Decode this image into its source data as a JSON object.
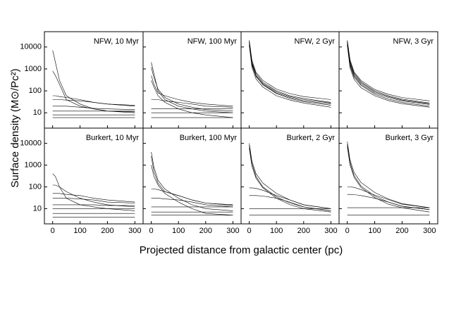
{
  "ylabel": "Surface density  (M⊙/Pc²)",
  "xlabel": "Projected distance from galactic center (pc)",
  "chart_data": [
    {
      "type": "line",
      "title": "NFW, 10 Myr",
      "color": "#000000",
      "log_y": true,
      "x": [
        0,
        10,
        25,
        50,
        100,
        150,
        200,
        300
      ],
      "xlim": [
        -30,
        330
      ],
      "xticks": [
        0,
        100,
        200,
        300
      ],
      "ylim": [
        2,
        50000
      ],
      "yticks": [
        10,
        100,
        1000,
        10000
      ],
      "series": [
        {
          "values": [
            7000,
            2000,
            300,
            60,
            25,
            15,
            12,
            10
          ]
        },
        {
          "values": [
            800,
            500,
            200,
            40,
            20,
            15,
            12,
            11
          ]
        },
        {
          "values": [
            60,
            60,
            55,
            50,
            40,
            30,
            25,
            20
          ]
        },
        {
          "values": [
            40,
            40,
            40,
            38,
            35,
            30,
            25,
            22
          ]
        },
        {
          "values": [
            20,
            20,
            20,
            20,
            18,
            16,
            15,
            14
          ]
        },
        {
          "values": [
            12,
            12,
            12,
            12,
            12,
            12,
            12,
            12
          ]
        },
        {
          "values": [
            8,
            8,
            8,
            8,
            8,
            8,
            8,
            8
          ]
        },
        {
          "values": [
            6,
            6,
            6,
            6,
            6,
            6,
            6,
            6
          ]
        }
      ]
    },
    {
      "type": "line",
      "title": "NFW, 100 Myr",
      "color": "#000000",
      "log_y": true,
      "x": [
        0,
        10,
        25,
        50,
        100,
        150,
        200,
        300
      ],
      "xlim": [
        -30,
        330
      ],
      "xticks": [
        0,
        100,
        200,
        300
      ],
      "ylim": [
        2,
        50000
      ],
      "yticks": [
        10,
        100,
        1000,
        10000
      ],
      "series": [
        {
          "values": [
            2000,
            600,
            100,
            40,
            20,
            15,
            12,
            10
          ]
        },
        {
          "values": [
            1200,
            400,
            120,
            50,
            25,
            18,
            14,
            12
          ]
        },
        {
          "values": [
            500,
            200,
            80,
            60,
            40,
            30,
            25,
            20
          ]
        },
        {
          "values": [
            300,
            150,
            60,
            30,
            15,
            10,
            8,
            6
          ]
        },
        {
          "values": [
            40,
            40,
            40,
            35,
            30,
            25,
            20,
            18
          ]
        },
        {
          "values": [
            15,
            15,
            15,
            15,
            15,
            15,
            15,
            15
          ]
        },
        {
          "values": [
            10,
            10,
            10,
            10,
            10,
            10,
            10,
            10
          ]
        },
        {
          "values": [
            6,
            6,
            6,
            6,
            6,
            6,
            6,
            6
          ]
        }
      ]
    },
    {
      "type": "line",
      "title": "NFW, 2 Gyr",
      "color": "#000000",
      "log_y": true,
      "x": [
        0,
        10,
        25,
        50,
        100,
        150,
        200,
        300
      ],
      "xlim": [
        -30,
        330
      ],
      "xticks": [
        0,
        100,
        200,
        300
      ],
      "ylim": [
        2,
        50000
      ],
      "yticks": [
        10,
        100,
        1000,
        10000
      ],
      "series": [
        {
          "values": [
            20000,
            2000,
            600,
            250,
            100,
            60,
            45,
            30
          ]
        },
        {
          "values": [
            15000,
            1500,
            450,
            200,
            80,
            50,
            35,
            25
          ]
        },
        {
          "values": [
            18000,
            1800,
            500,
            220,
            90,
            55,
            40,
            28
          ]
        },
        {
          "values": [
            12000,
            1200,
            350,
            150,
            60,
            38,
            28,
            18
          ]
        },
        {
          "values": [
            20000,
            2500,
            700,
            300,
            120,
            75,
            55,
            40
          ]
        },
        {
          "values": [
            16000,
            1600,
            480,
            190,
            75,
            45,
            32,
            22
          ]
        }
      ]
    },
    {
      "type": "line",
      "title": "NFW, 3 Gyr",
      "color": "#000000",
      "log_y": true,
      "x": [
        0,
        10,
        25,
        50,
        100,
        150,
        200,
        300
      ],
      "xlim": [
        -30,
        330
      ],
      "xticks": [
        0,
        100,
        200,
        300
      ],
      "ylim": [
        2,
        50000
      ],
      "yticks": [
        10,
        100,
        1000,
        10000
      ],
      "series": [
        {
          "values": [
            20000,
            2200,
            650,
            260,
            100,
            60,
            42,
            28
          ]
        },
        {
          "values": [
            16000,
            1600,
            480,
            200,
            80,
            50,
            35,
            24
          ]
        },
        {
          "values": [
            18000,
            1900,
            550,
            230,
            90,
            55,
            38,
            26
          ]
        },
        {
          "values": [
            12000,
            1100,
            330,
            140,
            60,
            36,
            26,
            18
          ]
        },
        {
          "values": [
            20000,
            2600,
            720,
            300,
            115,
            70,
            50,
            35
          ]
        },
        {
          "values": [
            14000,
            1400,
            420,
            180,
            70,
            42,
            30,
            20
          ]
        }
      ]
    },
    {
      "type": "line",
      "title": "Burkert, 10 Myr",
      "color": "#000000",
      "log_y": true,
      "x": [
        0,
        10,
        25,
        50,
        100,
        150,
        200,
        300
      ],
      "xlim": [
        -30,
        330
      ],
      "xticks": [
        0,
        100,
        200,
        300
      ],
      "ylim": [
        2,
        50000
      ],
      "yticks": [
        10,
        100,
        1000,
        10000
      ],
      "series": [
        {
          "values": [
            400,
            300,
            100,
            30,
            15,
            12,
            10,
            8
          ]
        },
        {
          "values": [
            120,
            120,
            100,
            60,
            30,
            20,
            15,
            12
          ]
        },
        {
          "values": [
            50,
            50,
            50,
            45,
            40,
            30,
            25,
            20
          ]
        },
        {
          "values": [
            30,
            30,
            30,
            30,
            28,
            25,
            20,
            18
          ]
        },
        {
          "values": [
            15,
            15,
            15,
            15,
            15,
            15,
            14,
            14
          ]
        },
        {
          "values": [
            10,
            10,
            10,
            10,
            10,
            10,
            10,
            10
          ]
        },
        {
          "values": [
            6,
            6,
            6,
            6,
            6,
            6,
            6,
            6
          ]
        },
        {
          "values": [
            4,
            4,
            4,
            4,
            4,
            4,
            4,
            4
          ]
        }
      ]
    },
    {
      "type": "line",
      "title": "Burkert, 100 Myr",
      "color": "#000000",
      "log_y": true,
      "x": [
        0,
        10,
        25,
        50,
        100,
        150,
        200,
        300
      ],
      "xlim": [
        -30,
        330
      ],
      "xticks": [
        0,
        100,
        200,
        300
      ],
      "ylim": [
        2,
        50000
      ],
      "yticks": [
        10,
        100,
        1000,
        10000
      ],
      "series": [
        {
          "values": [
            4000,
            800,
            200,
            80,
            30,
            15,
            10,
            8
          ]
        },
        {
          "values": [
            2500,
            500,
            150,
            60,
            40,
            25,
            18,
            14
          ]
        },
        {
          "values": [
            1000,
            300,
            120,
            50,
            20,
            10,
            6,
            5
          ]
        },
        {
          "values": [
            80,
            80,
            75,
            60,
            40,
            25,
            18,
            15
          ]
        },
        {
          "values": [
            30,
            30,
            30,
            28,
            25,
            20,
            15,
            12
          ]
        },
        {
          "values": [
            12,
            12,
            12,
            12,
            12,
            12,
            12,
            12
          ]
        },
        {
          "values": [
            7,
            7,
            7,
            7,
            7,
            7,
            7,
            7
          ]
        },
        {
          "values": [
            5,
            5,
            5,
            5,
            5,
            5,
            5,
            5
          ]
        }
      ]
    },
    {
      "type": "line",
      "title": "Burkert, 2 Gyr",
      "color": "#000000",
      "log_y": true,
      "x": [
        0,
        10,
        25,
        50,
        100,
        150,
        200,
        300
      ],
      "xlim": [
        -30,
        330
      ],
      "xticks": [
        0,
        100,
        200,
        300
      ],
      "ylim": [
        2,
        50000
      ],
      "yticks": [
        10,
        100,
        1000,
        10000
      ],
      "series": [
        {
          "values": [
            10000,
            1500,
            400,
            150,
            50,
            25,
            15,
            10
          ]
        },
        {
          "values": [
            8000,
            1200,
            300,
            100,
            35,
            18,
            12,
            8
          ]
        },
        {
          "values": [
            6000,
            900,
            250,
            90,
            30,
            15,
            10,
            7
          ]
        },
        {
          "values": [
            90,
            90,
            85,
            70,
            40,
            25,
            15,
            10
          ]
        },
        {
          "values": [
            40,
            40,
            40,
            38,
            30,
            20,
            12,
            8
          ]
        },
        {
          "values": [
            10,
            10,
            10,
            10,
            10,
            10,
            10,
            10
          ]
        },
        {
          "values": [
            5,
            5,
            5,
            5,
            5,
            5,
            5,
            5
          ]
        }
      ]
    },
    {
      "type": "line",
      "title": "Burkert, 3 Gyr",
      "color": "#000000",
      "log_y": true,
      "x": [
        0,
        10,
        25,
        50,
        100,
        150,
        200,
        300
      ],
      "xlim": [
        -30,
        330
      ],
      "xticks": [
        0,
        100,
        200,
        300
      ],
      "ylim": [
        2,
        50000
      ],
      "yticks": [
        10,
        100,
        1000,
        10000
      ],
      "series": [
        {
          "values": [
            12000,
            1700,
            450,
            160,
            55,
            28,
            17,
            11
          ]
        },
        {
          "values": [
            9000,
            1300,
            330,
            110,
            38,
            20,
            13,
            9
          ]
        },
        {
          "values": [
            7000,
            1000,
            270,
            95,
            32,
            16,
            11,
            7
          ]
        },
        {
          "values": [
            100,
            100,
            95,
            75,
            42,
            26,
            16,
            11
          ]
        },
        {
          "values": [
            45,
            45,
            44,
            40,
            30,
            20,
            13,
            9
          ]
        },
        {
          "values": [
            11,
            11,
            11,
            11,
            11,
            11,
            11,
            11
          ]
        },
        {
          "values": [
            5,
            5,
            5,
            5,
            5,
            5,
            5,
            5
          ]
        }
      ]
    }
  ]
}
